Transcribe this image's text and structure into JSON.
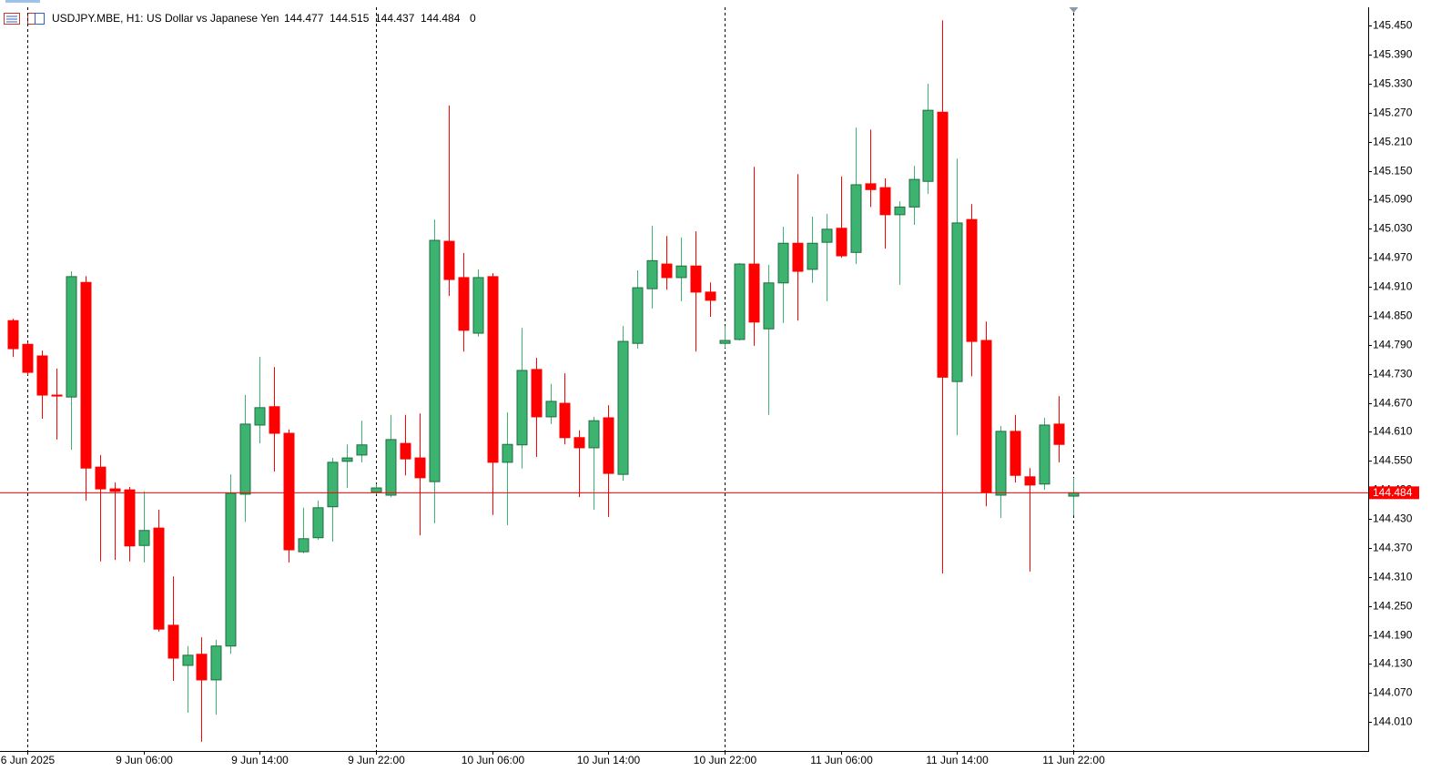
{
  "chart_data": {
    "type": "candlestick",
    "symbol": "USDJPY.MBE, H1:",
    "description": "US Dollar vs Japanese Yen",
    "header_volume": 0,
    "up_color": "#3cb371",
    "down_color": "#ff0000",
    "current_price": 144.484,
    "current_price_color": "#ff0000",
    "ylim": [
      143.95,
      145.488
    ],
    "yticks": [
      {
        "value": 145.45,
        "label": "145.450"
      },
      {
        "value": 145.39,
        "label": "145.390"
      },
      {
        "value": 145.33,
        "label": "145.330"
      },
      {
        "value": 145.27,
        "label": "145.270"
      },
      {
        "value": 145.21,
        "label": "145.210"
      },
      {
        "value": 145.15,
        "label": "145.150"
      },
      {
        "value": 145.09,
        "label": "145.090"
      },
      {
        "value": 145.03,
        "label": "145.030"
      },
      {
        "value": 144.97,
        "label": "144.970"
      },
      {
        "value": 144.91,
        "label": "144.910"
      },
      {
        "value": 144.85,
        "label": "144.850"
      },
      {
        "value": 144.79,
        "label": "144.790"
      },
      {
        "value": 144.73,
        "label": "144.730"
      },
      {
        "value": 144.67,
        "label": "144.670"
      },
      {
        "value": 144.61,
        "label": "144.610"
      },
      {
        "value": 144.55,
        "label": "144.550"
      },
      {
        "value": 144.49,
        "label": "144.490"
      },
      {
        "value": 144.43,
        "label": "144.430"
      },
      {
        "value": 144.37,
        "label": "144.370"
      },
      {
        "value": 144.31,
        "label": "144.310"
      },
      {
        "value": 144.25,
        "label": "144.250"
      },
      {
        "value": 144.19,
        "label": "144.190"
      },
      {
        "value": 144.13,
        "label": "144.130"
      },
      {
        "value": 144.07,
        "label": "144.070"
      },
      {
        "value": 144.01,
        "label": "144.010"
      }
    ],
    "categories": [
      null,
      "6 Jun 2025",
      null,
      null,
      null,
      null,
      null,
      null,
      null,
      "9 Jun 06:00",
      null,
      null,
      null,
      null,
      null,
      null,
      null,
      "9 Jun 14:00",
      null,
      null,
      null,
      null,
      null,
      null,
      null,
      "9 Jun 22:00",
      null,
      null,
      null,
      null,
      null,
      null,
      null,
      "10 Jun 06:00",
      null,
      null,
      null,
      null,
      null,
      null,
      null,
      "10 Jun 14:00",
      null,
      null,
      null,
      null,
      null,
      null,
      null,
      "10 Jun 22:00",
      null,
      null,
      null,
      null,
      null,
      null,
      null,
      "11 Jun 06:00",
      null,
      null,
      null,
      null,
      null,
      null,
      null,
      "11 Jun 14:00",
      null,
      null,
      null,
      null,
      null,
      null,
      null,
      "11 Jun 22:00"
    ],
    "open": [
      144.84,
      144.791,
      144.767,
      144.686,
      144.682,
      144.919,
      144.537,
      144.492,
      144.49,
      144.375,
      144.411,
      144.21,
      144.127,
      144.15,
      144.097,
      144.167,
      144.481,
      144.624,
      144.662,
      144.607,
      144.362,
      144.391,
      144.455,
      144.549,
      144.562,
      144.485,
      144.479,
      144.586,
      144.556,
      144.507,
      145.004,
      144.929,
      144.814,
      144.931,
      144.547,
      144.583,
      144.739,
      144.641,
      144.669,
      144.598,
      144.577,
      144.639,
      144.522,
      144.793,
      144.906,
      144.957,
      144.929,
      144.953,
      144.899,
      144.793,
      144.801,
      144.957,
      144.823,
      144.918,
      145.0,
      144.946,
      145.002,
      145.031,
      144.981,
      145.123,
      145.115,
      145.059,
      145.075,
      145.128,
      145.271,
      144.714,
      145.049,
      144.799,
      144.479,
      144.611,
      144.517,
      144.502,
      144.626,
      144.477
    ],
    "high": [
      144.844,
      144.795,
      144.778,
      144.741,
      144.942,
      144.932,
      144.562,
      144.505,
      144.496,
      144.487,
      144.449,
      144.311,
      144.167,
      144.185,
      144.18,
      144.522,
      144.686,
      144.765,
      144.744,
      144.615,
      144.453,
      144.468,
      144.556,
      144.584,
      144.633,
      144.502,
      144.645,
      144.645,
      144.648,
      145.049,
      145.285,
      144.98,
      144.946,
      144.938,
      144.65,
      144.825,
      144.763,
      144.709,
      144.731,
      144.613,
      144.641,
      144.665,
      144.829,
      144.944,
      145.036,
      145.015,
      145.012,
      145.025,
      144.919,
      144.829,
      144.959,
      145.158,
      144.955,
      145.034,
      145.143,
      145.055,
      145.061,
      145.138,
      145.239,
      145.235,
      145.134,
      145.087,
      145.16,
      145.33,
      145.461,
      145.175,
      145.081,
      144.838,
      144.622,
      144.645,
      144.535,
      144.639,
      144.684,
      144.515
    ],
    "low": [
      144.765,
      144.727,
      144.637,
      144.594,
      144.573,
      144.468,
      144.342,
      144.345,
      144.342,
      144.34,
      144.197,
      144.095,
      144.029,
      143.969,
      144.025,
      144.151,
      144.424,
      144.586,
      144.528,
      144.34,
      144.359,
      144.387,
      144.383,
      144.494,
      144.547,
      144.481,
      144.475,
      144.52,
      144.396,
      144.421,
      144.891,
      144.776,
      144.807,
      144.438,
      144.417,
      144.534,
      144.558,
      144.626,
      144.584,
      144.475,
      144.449,
      144.434,
      144.509,
      144.782,
      144.865,
      144.904,
      144.88,
      144.776,
      144.848,
      144.784,
      144.799,
      144.788,
      144.645,
      144.835,
      144.84,
      144.918,
      144.88,
      144.97,
      144.957,
      145.075,
      144.989,
      144.914,
      145.038,
      145.102,
      144.317,
      144.603,
      144.725,
      144.456,
      144.432,
      144.505,
      144.321,
      144.49,
      144.547,
      144.437
    ],
    "close": [
      144.782,
      144.733,
      144.686,
      144.684,
      144.931,
      144.535,
      144.492,
      144.487,
      144.374,
      144.406,
      144.202,
      144.142,
      144.148,
      144.097,
      144.167,
      144.483,
      144.626,
      144.66,
      144.607,
      144.366,
      144.389,
      144.453,
      144.547,
      144.556,
      144.583,
      144.494,
      144.594,
      144.554,
      144.515,
      145.006,
      144.925,
      144.82,
      144.929,
      144.547,
      144.584,
      144.737,
      144.641,
      144.673,
      144.598,
      144.577,
      144.633,
      144.524,
      144.797,
      144.908,
      144.964,
      144.929,
      144.953,
      144.899,
      144.882,
      144.799,
      144.957,
      144.837,
      144.918,
      145.0,
      144.942,
      145.0,
      145.029,
      144.974,
      145.121,
      145.111,
      145.059,
      145.075,
      145.132,
      145.275,
      144.723,
      145.042,
      144.797,
      144.485,
      144.611,
      144.52,
      144.5,
      144.624,
      144.584,
      144.484
    ]
  }
}
